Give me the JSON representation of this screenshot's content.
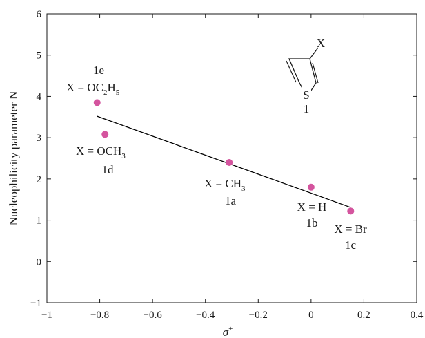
{
  "chart_data": {
    "type": "scatter",
    "xlabel": "σ",
    "xlabel_sup": "+",
    "ylabel": "Nucleophilicity parameter N",
    "xlim": [
      -1,
      0.4
    ],
    "ylim": [
      -1,
      6
    ],
    "x_ticks": [
      -1,
      -0.8,
      -0.6,
      -0.4,
      -0.2,
      0,
      0.2,
      0.4
    ],
    "x_tick_labels": [
      "−1",
      "−0.8",
      "−0.6",
      "−0.4",
      "−0.2",
      "0",
      "0.2",
      "0.4"
    ],
    "y_ticks": [
      -1,
      0,
      1,
      2,
      3,
      4,
      5,
      6
    ],
    "y_tick_labels": [
      "−1",
      "0",
      "1",
      "2",
      "3",
      "4",
      "5",
      "6"
    ],
    "grid": false,
    "point_color": "#d4549e",
    "line_color": "#000000",
    "points": [
      {
        "x": -0.81,
        "y": 3.85,
        "label_formula": "X = OC2H5",
        "label_id": "1e"
      },
      {
        "x": -0.78,
        "y": 3.08,
        "label_formula": "X = OCH3",
        "label_id": "1d"
      },
      {
        "x": -0.31,
        "y": 2.4,
        "label_formula": "X = CH3",
        "label_id": "1a"
      },
      {
        "x": 0.0,
        "y": 1.8,
        "label_formula": "X = H",
        "label_id": "1b"
      },
      {
        "x": 0.15,
        "y": 1.22,
        "label_formula": "X = Br",
        "label_id": "1c"
      }
    ],
    "fit_line": {
      "x": [
        -0.81,
        0.15
      ],
      "y": [
        3.52,
        1.31
      ]
    },
    "structure": {
      "substituent": "X",
      "heteroatom": "S",
      "compound_id": "1"
    }
  }
}
